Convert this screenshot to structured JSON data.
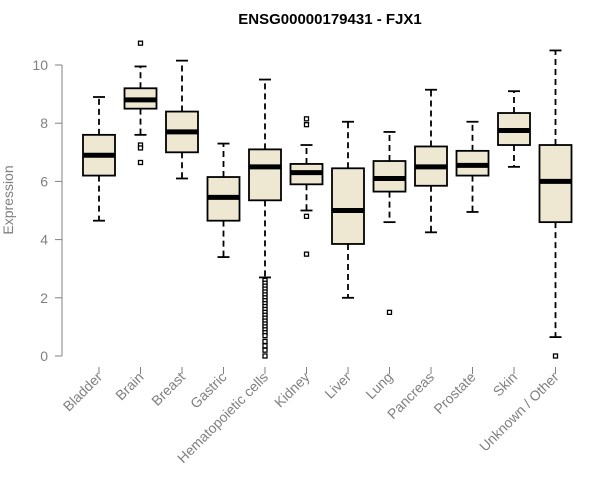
{
  "chart_data": {
    "type": "boxplot",
    "title": "ENSG00000179431 - FJX1",
    "xlabel": "",
    "ylabel": "Expression",
    "ylim": [
      0,
      10.5
    ],
    "yticks": [
      0,
      2,
      4,
      6,
      8,
      10
    ],
    "colors": {
      "box_fill": "#EEE8D2",
      "stroke": "#000000",
      "axis": "#808080"
    },
    "categories": [
      "Bladder",
      "Brain",
      "Breast",
      "Gastric",
      "Hematopoietic cells",
      "Kidney",
      "Liver",
      "Lung",
      "Pancreas",
      "Prostate",
      "Skin",
      "Unknown / Other"
    ],
    "boxes": [
      {
        "name": "Bladder",
        "whisker_low": 4.65,
        "q1": 6.2,
        "median": 6.9,
        "q3": 7.6,
        "whisker_high": 8.9,
        "outliers": []
      },
      {
        "name": "Brain",
        "whisker_low": 7.6,
        "q1": 8.5,
        "median": 8.8,
        "q3": 9.2,
        "whisker_high": 9.95,
        "outliers": [
          10.75,
          7.25,
          7.15,
          6.65
        ]
      },
      {
        "name": "Breast",
        "whisker_low": 6.1,
        "q1": 7.0,
        "median": 7.7,
        "q3": 8.4,
        "whisker_high": 10.15,
        "outliers": []
      },
      {
        "name": "Gastric",
        "whisker_low": 3.4,
        "q1": 4.65,
        "median": 5.45,
        "q3": 6.15,
        "whisker_high": 7.3,
        "outliers": []
      },
      {
        "name": "Hematopoietic cells",
        "whisker_low": 2.7,
        "q1": 5.35,
        "median": 6.5,
        "q3": 7.1,
        "whisker_high": 9.5,
        "outliers": [
          2.6,
          2.5,
          2.4,
          2.3,
          2.2,
          2.1,
          2.0,
          1.9,
          1.8,
          1.7,
          1.6,
          1.5,
          1.4,
          1.3,
          1.2,
          1.1,
          1.0,
          0.9,
          0.8,
          0.7,
          0.5,
          0.35,
          0.2,
          0.0
        ]
      },
      {
        "name": "Kidney",
        "whisker_low": 5.0,
        "q1": 5.9,
        "median": 6.3,
        "q3": 6.6,
        "whisker_high": 7.25,
        "outliers": [
          8.15,
          7.95,
          4.8,
          3.5
        ]
      },
      {
        "name": "Liver",
        "whisker_low": 2.0,
        "q1": 3.85,
        "median": 5.0,
        "q3": 6.45,
        "whisker_high": 8.05,
        "outliers": []
      },
      {
        "name": "Lung",
        "whisker_low": 4.6,
        "q1": 5.65,
        "median": 6.1,
        "q3": 6.7,
        "whisker_high": 7.7,
        "outliers": [
          1.5
        ]
      },
      {
        "name": "Pancreas",
        "whisker_low": 4.25,
        "q1": 5.85,
        "median": 6.5,
        "q3": 7.2,
        "whisker_high": 9.15,
        "outliers": []
      },
      {
        "name": "Prostate",
        "whisker_low": 4.95,
        "q1": 6.2,
        "median": 6.55,
        "q3": 7.05,
        "whisker_high": 8.05,
        "outliers": []
      },
      {
        "name": "Skin",
        "whisker_low": 6.5,
        "q1": 7.25,
        "median": 7.75,
        "q3": 8.35,
        "whisker_high": 9.1,
        "outliers": []
      },
      {
        "name": "Unknown / Other",
        "whisker_low": 0.65,
        "q1": 4.6,
        "median": 6.0,
        "q3": 7.25,
        "whisker_high": 10.5,
        "outliers": [
          0.0
        ]
      }
    ]
  }
}
